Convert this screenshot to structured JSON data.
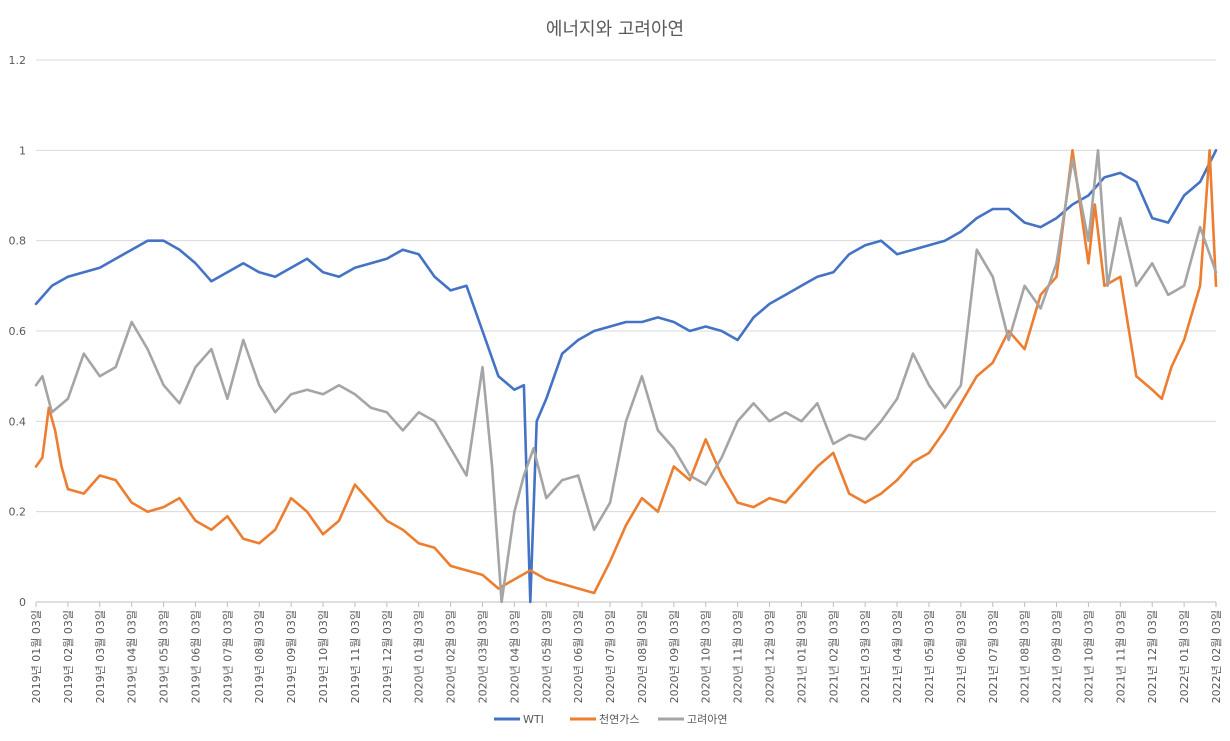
{
  "chart_data": {
    "type": "line",
    "title": "에너지와 고려아연",
    "xlabel": "",
    "ylabel": "",
    "ylim": [
      0,
      1.2
    ],
    "yticks": [
      "0",
      "0.2",
      "0.4",
      "0.6",
      "0.8",
      "1",
      "1.2"
    ],
    "grid": true,
    "legend_position": "bottom",
    "x_tick_labels": [
      "2019년 01월 03일",
      "2019년 02월 03일",
      "2019년 03월 03일",
      "2019년 04월 03일",
      "2019년 05월 03일",
      "2019년 06월 03일",
      "2019년 07월 03일",
      "2019년 08월 03일",
      "2019년 09월 03일",
      "2019년 10월 03일",
      "2019년 11월 03일",
      "2019년 12월 03일",
      "2020년 01월 03일",
      "2020년 02월 03일",
      "2020년 03월 03일",
      "2020년 04월 03일",
      "2020년 05월 03일",
      "2020년 06월 03일",
      "2020년 07월 03일",
      "2020년 08월 03일",
      "2020년 09월 03일",
      "2020년 10월 03일",
      "2020년 11월 03일",
      "2020년 12월 03일",
      "2021년 01월 03일",
      "2021년 02월 03일",
      "2021년 03월 03일",
      "2021년 04월 03일",
      "2021년 05월 03일",
      "2021년 06월 03일",
      "2021년 07월 03일",
      "2021년 08월 03일",
      "2021년 09월 03일",
      "2021년 10월 03일",
      "2021년 11월 03일",
      "2021년 12월 03일",
      "2022년 01월 03일",
      "2022년 02월 03일"
    ],
    "series": [
      {
        "name": "WTI",
        "color": "#4472C4",
        "x": [
          0,
          0.5,
          1,
          1.5,
          2,
          2.5,
          3,
          3.5,
          4,
          4.5,
          5,
          5.5,
          6,
          6.5,
          7,
          7.5,
          8,
          8.5,
          9,
          9.5,
          10,
          10.5,
          11,
          11.5,
          12,
          12.5,
          13,
          13.5,
          14,
          14.5,
          15,
          15.3,
          15.5,
          15.7,
          16,
          16.5,
          17,
          17.5,
          18,
          18.5,
          19,
          19.5,
          20,
          20.5,
          21,
          21.5,
          22,
          22.5,
          23,
          23.5,
          24,
          24.5,
          25,
          25.5,
          26,
          26.5,
          27,
          27.5,
          28,
          28.5,
          29,
          29.5,
          30,
          30.5,
          31,
          31.5,
          32,
          32.5,
          33,
          33.5,
          34,
          34.5,
          35,
          35.5,
          36,
          36.5,
          37
        ],
        "values": [
          0.66,
          0.7,
          0.72,
          0.73,
          0.74,
          0.76,
          0.78,
          0.8,
          0.8,
          0.78,
          0.75,
          0.71,
          0.73,
          0.75,
          0.73,
          0.72,
          0.74,
          0.76,
          0.73,
          0.72,
          0.74,
          0.75,
          0.76,
          0.78,
          0.77,
          0.72,
          0.69,
          0.7,
          0.6,
          0.5,
          0.47,
          0.48,
          0.0,
          0.4,
          0.45,
          0.55,
          0.58,
          0.6,
          0.61,
          0.62,
          0.62,
          0.63,
          0.62,
          0.6,
          0.61,
          0.6,
          0.58,
          0.63,
          0.66,
          0.68,
          0.7,
          0.72,
          0.73,
          0.77,
          0.79,
          0.8,
          0.77,
          0.78,
          0.79,
          0.8,
          0.82,
          0.85,
          0.87,
          0.87,
          0.84,
          0.83,
          0.85,
          0.88,
          0.9,
          0.94,
          0.95,
          0.93,
          0.85,
          0.84,
          0.9,
          0.93,
          1.0
        ]
      },
      {
        "name": "천연가스",
        "color": "#ED7D31",
        "x": [
          0,
          0.2,
          0.4,
          0.6,
          0.8,
          1,
          1.5,
          2,
          2.5,
          3,
          3.5,
          4,
          4.5,
          5,
          5.5,
          6,
          6.5,
          7,
          7.5,
          8,
          8.5,
          9,
          9.5,
          10,
          10.5,
          11,
          11.5,
          12,
          12.5,
          13,
          13.5,
          14,
          14.5,
          15,
          15.5,
          16,
          16.5,
          17,
          17.5,
          18,
          18.5,
          19,
          19.5,
          20,
          20.5,
          21,
          21.5,
          22,
          22.5,
          23,
          23.5,
          24,
          24.5,
          25,
          25.5,
          26,
          26.5,
          27,
          27.5,
          28,
          28.5,
          29,
          29.5,
          30,
          30.5,
          31,
          31.5,
          32,
          32.5,
          33,
          33.2,
          33.5,
          34,
          34.5,
          35,
          35.3,
          35.6,
          36,
          36.5,
          36.8,
          37
        ],
        "values": [
          0.3,
          0.32,
          0.43,
          0.38,
          0.3,
          0.25,
          0.24,
          0.28,
          0.27,
          0.22,
          0.2,
          0.21,
          0.23,
          0.18,
          0.16,
          0.19,
          0.14,
          0.13,
          0.16,
          0.23,
          0.2,
          0.15,
          0.18,
          0.26,
          0.22,
          0.18,
          0.16,
          0.13,
          0.12,
          0.08,
          0.07,
          0.06,
          0.03,
          0.05,
          0.07,
          0.05,
          0.04,
          0.03,
          0.02,
          0.09,
          0.17,
          0.23,
          0.2,
          0.3,
          0.27,
          0.36,
          0.28,
          0.22,
          0.21,
          0.23,
          0.22,
          0.26,
          0.3,
          0.33,
          0.24,
          0.22,
          0.24,
          0.27,
          0.31,
          0.33,
          0.38,
          0.44,
          0.5,
          0.53,
          0.6,
          0.56,
          0.68,
          0.72,
          1.0,
          0.75,
          0.88,
          0.7,
          0.72,
          0.5,
          0.47,
          0.45,
          0.52,
          0.58,
          0.7,
          1.0,
          0.7
        ]
      },
      {
        "name": "고려아연",
        "color": "#A5A5A5",
        "x": [
          0,
          0.2,
          0.5,
          1,
          1.5,
          2,
          2.5,
          3,
          3.5,
          4,
          4.5,
          5,
          5.5,
          6,
          6.5,
          7,
          7.5,
          8,
          8.5,
          9,
          9.5,
          10,
          10.5,
          11,
          11.5,
          12,
          12.5,
          13,
          13.5,
          14,
          14.3,
          14.6,
          15,
          15.3,
          15.6,
          16,
          16.5,
          17,
          17.5,
          18,
          18.5,
          19,
          19.5,
          20,
          20.5,
          21,
          21.5,
          22,
          22.5,
          23,
          23.5,
          24,
          24.5,
          25,
          25.5,
          26,
          26.5,
          27,
          27.5,
          28,
          28.5,
          29,
          29.5,
          30,
          30.5,
          31,
          31.5,
          32,
          32.5,
          33,
          33.3,
          33.6,
          34,
          34.5,
          35,
          35.5,
          36,
          36.5,
          37
        ],
        "values": [
          0.48,
          0.5,
          0.42,
          0.45,
          0.55,
          0.5,
          0.52,
          0.62,
          0.56,
          0.48,
          0.44,
          0.52,
          0.56,
          0.45,
          0.58,
          0.48,
          0.42,
          0.46,
          0.47,
          0.46,
          0.48,
          0.46,
          0.43,
          0.42,
          0.38,
          0.42,
          0.4,
          0.34,
          0.28,
          0.52,
          0.3,
          0.0,
          0.2,
          0.28,
          0.34,
          0.23,
          0.27,
          0.28,
          0.16,
          0.22,
          0.4,
          0.5,
          0.38,
          0.34,
          0.28,
          0.26,
          0.32,
          0.4,
          0.44,
          0.4,
          0.42,
          0.4,
          0.44,
          0.35,
          0.37,
          0.36,
          0.4,
          0.45,
          0.55,
          0.48,
          0.43,
          0.48,
          0.78,
          0.72,
          0.58,
          0.7,
          0.65,
          0.75,
          0.98,
          0.8,
          1.0,
          0.7,
          0.85,
          0.7,
          0.75,
          0.68,
          0.7,
          0.83,
          0.73
        ]
      }
    ]
  }
}
